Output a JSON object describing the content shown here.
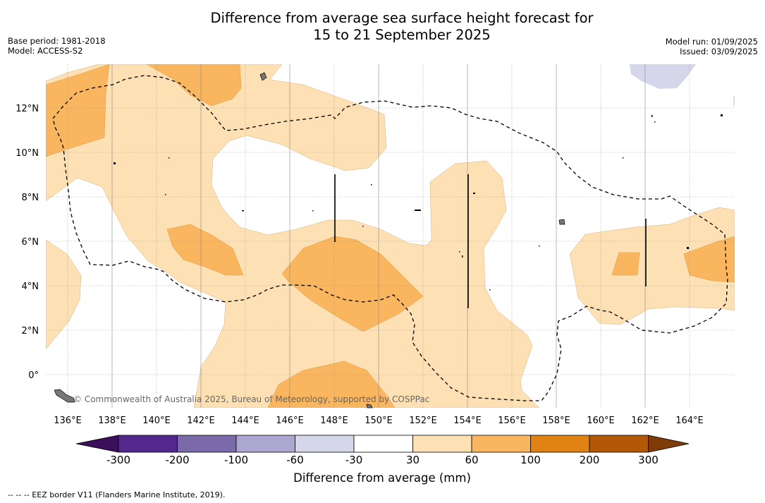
{
  "header": {
    "title_line1": "Difference from average sea surface height forecast for",
    "title_line2": "15 to 21 September 2025",
    "base_period": "Base period: 1981-2018",
    "model": "Model: ACCESS-S2",
    "model_run": "Model run: 01/09/2025",
    "issued": "Issued: 03/09/2025"
  },
  "map": {
    "lon_ticks": [
      "136°E",
      "138°E",
      "140°E",
      "142°E",
      "144°E",
      "146°E",
      "148°E",
      "150°E",
      "152°E",
      "154°E",
      "156°E",
      "158°E",
      "160°E",
      "162°E",
      "164°E"
    ],
    "lat_ticks": [
      "12°N",
      "10°N",
      "8°N",
      "6°N",
      "4°N",
      "2°N",
      "0°"
    ],
    "copyright": "© Commonwealth of Australia 2025, Bureau of Meteorology, supported by COSPPac",
    "colors": {
      "anomaly_30_60": "#fde0b4",
      "anomaly_60_100": "#fab65f",
      "anomaly_neg30_neg60": "#d6d6ea",
      "land": "#888888",
      "grid": "#888888"
    }
  },
  "colorbar": {
    "title": "Difference from average (mm)",
    "labels": [
      "-300",
      "-200",
      "-100",
      "-60",
      "-30",
      "30",
      "60",
      "100",
      "200",
      "300"
    ],
    "colors": [
      "#3b0f5a",
      "#54278f",
      "#7a6aaa",
      "#aca7d0",
      "#d6d6ea",
      "#ffffff",
      "#fde0b4",
      "#fab65f",
      "#e08214",
      "#b35806",
      "#7f3b08"
    ]
  },
  "legend": {
    "eez_note": "--  --  -- EEZ border V11 (Flanders Marine Institute, 2019)."
  }
}
